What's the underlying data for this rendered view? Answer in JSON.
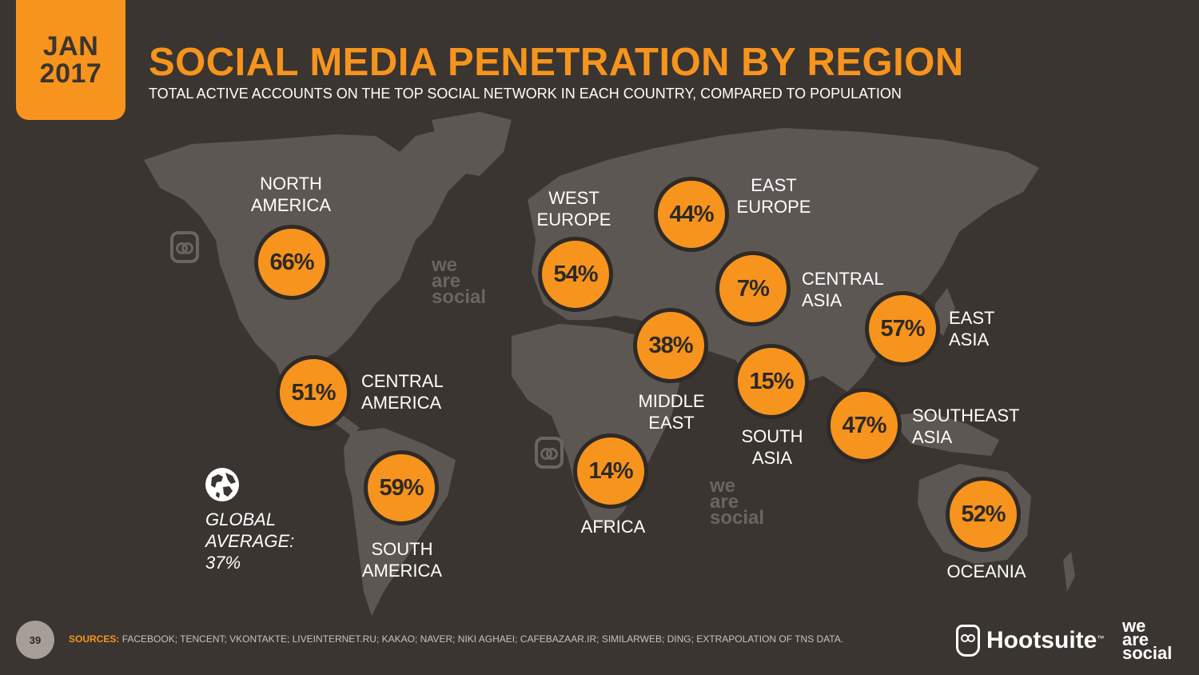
{
  "header": {
    "badge_month": "JAN",
    "badge_year": "2017",
    "title": "SOCIAL MEDIA PENETRATION BY REGION",
    "subtitle": "TOTAL ACTIVE ACCOUNTS ON THE TOP SOCIAL NETWORK IN EACH COUNTRY, COMPARED TO POPULATION"
  },
  "regions": [
    {
      "id": "north-america",
      "label_lines": [
        "NORTH",
        "AMERICA"
      ],
      "value": "66%"
    },
    {
      "id": "central-america",
      "label_lines": [
        "CENTRAL",
        "AMERICA"
      ],
      "value": "51%"
    },
    {
      "id": "south-america",
      "label_lines": [
        "SOUTH",
        "AMERICA"
      ],
      "value": "59%"
    },
    {
      "id": "west-europe",
      "label_lines": [
        "WEST",
        "EUROPE"
      ],
      "value": "54%"
    },
    {
      "id": "east-europe",
      "label_lines": [
        "EAST",
        "EUROPE"
      ],
      "value": "44%"
    },
    {
      "id": "central-asia",
      "label_lines": [
        "CENTRAL",
        "ASIA"
      ],
      "value": "7%"
    },
    {
      "id": "middle-east",
      "label_lines": [
        "MIDDLE",
        "EAST"
      ],
      "value": "38%"
    },
    {
      "id": "africa",
      "label_lines": [
        "AFRICA"
      ],
      "value": "14%"
    },
    {
      "id": "south-asia",
      "label_lines": [
        "SOUTH",
        "ASIA"
      ],
      "value": "15%"
    },
    {
      "id": "east-asia",
      "label_lines": [
        "EAST",
        "ASIA"
      ],
      "value": "57%"
    },
    {
      "id": "southeast-asia",
      "label_lines": [
        "SOUTHEAST",
        "ASIA"
      ],
      "value": "47%"
    },
    {
      "id": "oceania",
      "label_lines": [
        "OCEANIA"
      ],
      "value": "52%"
    }
  ],
  "global_average": {
    "lines": [
      "GLOBAL",
      "AVERAGE:",
      "37%"
    ],
    "icon": "globe-icon"
  },
  "watermark": {
    "lines": [
      "we",
      "are",
      "social"
    ]
  },
  "footer": {
    "page_number": "39",
    "sources_label": "SOURCES:",
    "sources_text": "FACEBOOK; TENCENT; VKONTAKTE; LIVEINTERNET.RU; KAKAO; NAVER; NIKI AGHAEI; CAFEBAZAAR.IR; SIMILARWEB; DING; EXTRAPOLATION OF TNS DATA.",
    "brand": "Hootsuite",
    "brand_tm": "™",
    "brand2_lines": [
      "we",
      "are",
      "social"
    ]
  },
  "colors": {
    "accent": "#f7941d",
    "background": "#3a3530",
    "land": "#5d5753"
  }
}
